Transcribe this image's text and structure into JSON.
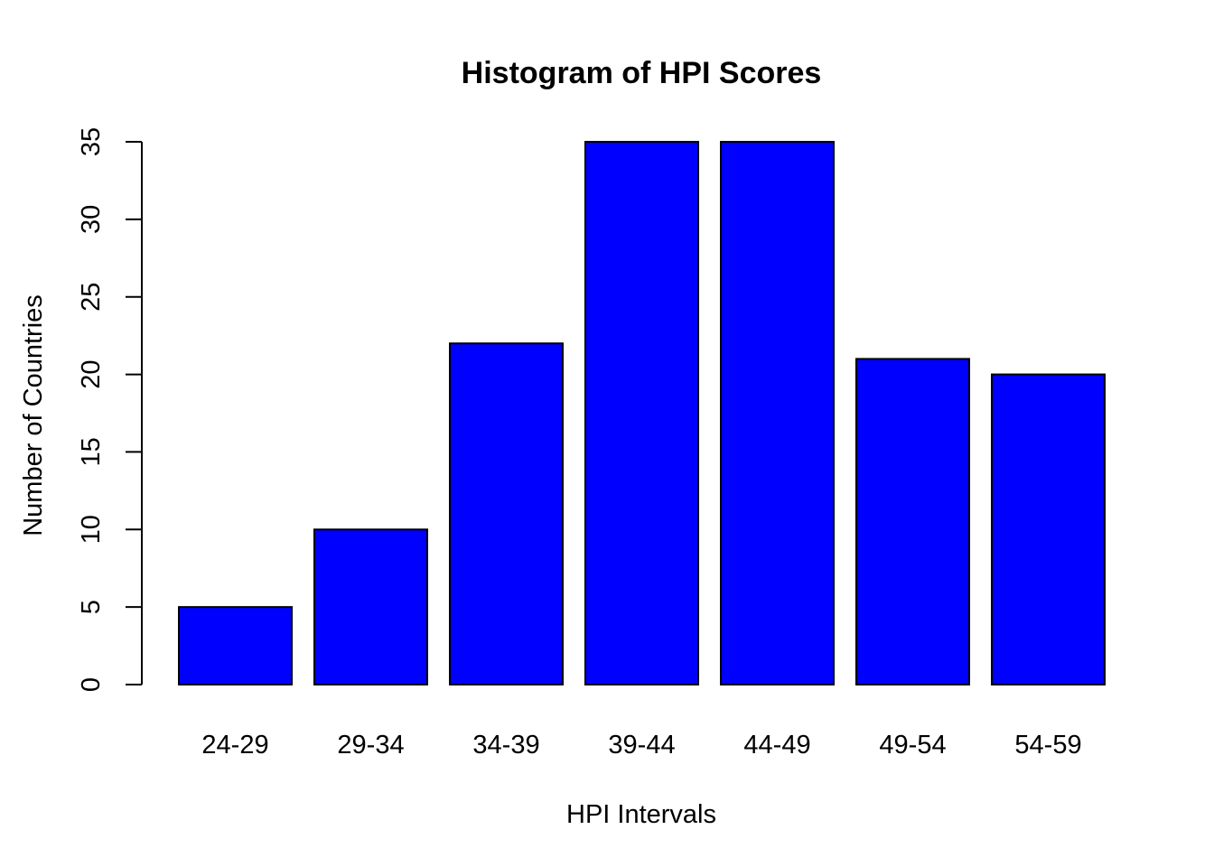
{
  "chart_data": {
    "type": "bar",
    "title": "Histogram of HPI Scores",
    "xlabel": "HPI Intervals",
    "ylabel": "Number of Countries",
    "categories": [
      "24-29",
      "29-34",
      "34-39",
      "39-44",
      "44-49",
      "49-54",
      "54-59"
    ],
    "values": [
      5,
      10,
      22,
      35,
      35,
      21,
      20
    ],
    "ylim": [
      0,
      35
    ],
    "yticks": [
      "0",
      "5",
      "10",
      "15",
      "20",
      "25",
      "30",
      "35"
    ],
    "bar_color": "#0000ff",
    "bar_border_color": "#000000",
    "grid": false,
    "legend": "none"
  }
}
